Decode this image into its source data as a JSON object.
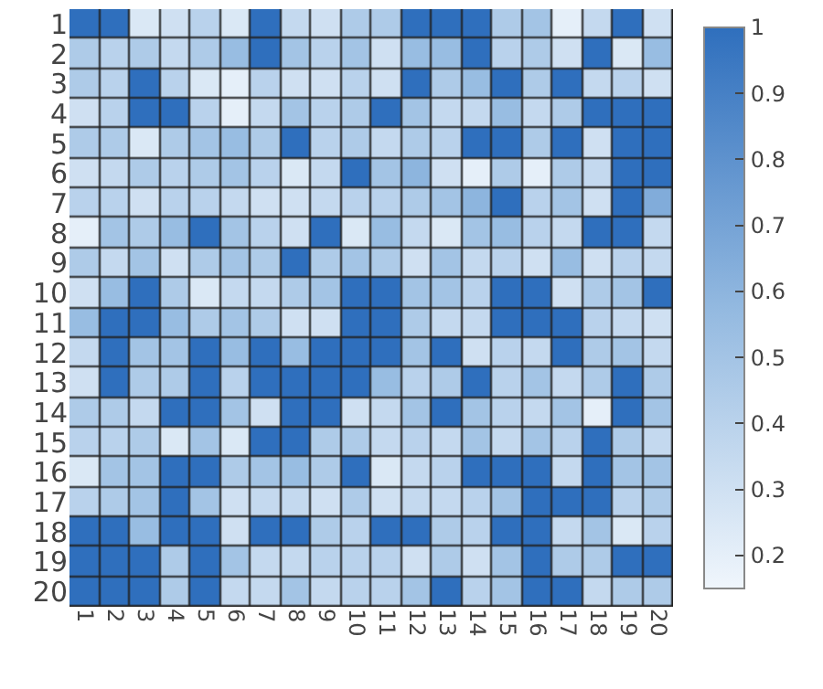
{
  "chart_data": {
    "type": "heatmap",
    "categories": [
      "1",
      "2",
      "3",
      "4",
      "5",
      "6",
      "7",
      "8",
      "9",
      "10",
      "11",
      "12",
      "13",
      "14",
      "15",
      "16",
      "17",
      "18",
      "19",
      "20"
    ],
    "y_categories": [
      "1",
      "2",
      "3",
      "4",
      "5",
      "6",
      "7",
      "8",
      "9",
      "10",
      "11",
      "12",
      "13",
      "14",
      "15",
      "16",
      "17",
      "18",
      "19",
      "20"
    ],
    "cells": [
      [
        1,
        1,
        0.25,
        0.3,
        0.4,
        0.25,
        1,
        0.35,
        0.3,
        0.45,
        0.45,
        1,
        1,
        1,
        0.45,
        0.5,
        0.2,
        0.35,
        1,
        0.3
      ],
      [
        0.45,
        0.4,
        0.45,
        0.35,
        0.45,
        0.55,
        1,
        0.5,
        0.4,
        0.5,
        0.3,
        0.55,
        0.55,
        1,
        0.4,
        0.45,
        0.3,
        1,
        0.25,
        0.55
      ],
      [
        0.45,
        0.4,
        1,
        0.4,
        0.25,
        0.2,
        0.4,
        0.3,
        0.3,
        0.4,
        0.3,
        1,
        0.45,
        0.55,
        1,
        0.45,
        1,
        0.35,
        0.4,
        0.3
      ],
      [
        0.3,
        0.4,
        1,
        1,
        0.4,
        0.2,
        0.35,
        0.5,
        0.4,
        0.45,
        1,
        0.5,
        0.35,
        0.35,
        0.55,
        0.35,
        0.45,
        1,
        1,
        1
      ],
      [
        0.45,
        0.45,
        0.25,
        0.45,
        0.5,
        0.55,
        0.45,
        1,
        0.4,
        0.45,
        0.35,
        0.45,
        0.4,
        1,
        1,
        0.45,
        1,
        0.3,
        1,
        1
      ],
      [
        0.3,
        0.35,
        0.45,
        0.4,
        0.45,
        0.5,
        0.4,
        0.25,
        0.35,
        1,
        0.5,
        0.6,
        0.3,
        0.2,
        0.45,
        0.2,
        0.45,
        0.35,
        1,
        1
      ],
      [
        0.4,
        0.4,
        0.3,
        0.4,
        0.4,
        0.35,
        0.3,
        0.3,
        0.35,
        0.4,
        0.4,
        0.45,
        0.5,
        0.6,
        1,
        0.4,
        0.5,
        0.3,
        1,
        0.65
      ],
      [
        0.2,
        0.5,
        0.45,
        0.55,
        1,
        0.5,
        0.4,
        0.3,
        1,
        0.25,
        0.55,
        0.35,
        0.25,
        0.5,
        0.55,
        0.4,
        0.35,
        1,
        1,
        0.35
      ],
      [
        0.45,
        0.35,
        0.5,
        0.3,
        0.45,
        0.5,
        0.45,
        1,
        0.45,
        0.5,
        0.45,
        0.3,
        0.5,
        0.35,
        0.4,
        0.3,
        0.55,
        0.3,
        0.4,
        0.35
      ],
      [
        0.3,
        0.55,
        1,
        0.45,
        0.25,
        0.35,
        0.35,
        0.45,
        0.5,
        1,
        1,
        0.5,
        0.5,
        0.4,
        1,
        1,
        0.3,
        0.45,
        0.5,
        1
      ],
      [
        0.55,
        1,
        1,
        0.55,
        0.45,
        0.5,
        0.45,
        0.3,
        0.3,
        1,
        1,
        0.45,
        0.35,
        0.35,
        1,
        1,
        1,
        0.4,
        0.35,
        0.3
      ],
      [
        0.35,
        1,
        0.5,
        0.5,
        1,
        0.55,
        1,
        0.55,
        1,
        1,
        1,
        0.5,
        1,
        0.3,
        0.4,
        0.35,
        1,
        0.45,
        0.5,
        0.35
      ],
      [
        0.3,
        1,
        0.45,
        0.45,
        1,
        0.4,
        1,
        1,
        1,
        1,
        0.55,
        0.4,
        0.45,
        1,
        0.4,
        0.5,
        0.35,
        0.45,
        1,
        0.45
      ],
      [
        0.45,
        0.45,
        0.35,
        1,
        1,
        0.5,
        0.3,
        1,
        1,
        0.3,
        0.35,
        0.5,
        1,
        0.5,
        0.4,
        0.35,
        0.5,
        0.2,
        1,
        0.5
      ],
      [
        0.4,
        0.4,
        0.45,
        0.25,
        0.5,
        0.25,
        1,
        1,
        0.45,
        0.45,
        0.35,
        0.4,
        0.35,
        0.5,
        0.35,
        0.5,
        0.4,
        1,
        0.45,
        0.35
      ],
      [
        0.25,
        0.5,
        0.5,
        1,
        1,
        0.45,
        0.5,
        0.55,
        0.45,
        1,
        0.25,
        0.35,
        0.4,
        1,
        1,
        1,
        0.35,
        1,
        0.5,
        0.5
      ],
      [
        0.4,
        0.45,
        0.5,
        1,
        0.5,
        0.3,
        0.35,
        0.35,
        0.3,
        0.45,
        0.3,
        0.35,
        0.35,
        0.4,
        0.5,
        1,
        1,
        1,
        0.4,
        0.45
      ],
      [
        1,
        1,
        0.55,
        1,
        1,
        0.3,
        1,
        1,
        0.45,
        0.4,
        1,
        1,
        0.45,
        0.4,
        1,
        1,
        0.35,
        0.5,
        0.25,
        0.4
      ],
      [
        1,
        1,
        1,
        0.45,
        1,
        0.5,
        0.35,
        0.35,
        0.4,
        0.4,
        0.4,
        0.3,
        0.45,
        0.3,
        0.5,
        1,
        0.45,
        0.45,
        1,
        1
      ],
      [
        1,
        1,
        1,
        0.45,
        1,
        0.35,
        0.35,
        0.5,
        0.35,
        0.4,
        0.4,
        0.5,
        1,
        0.4,
        0.5,
        1,
        1,
        0.35,
        0.45,
        0.45
      ]
    ],
    "clim": [
      0.15,
      1
    ],
    "cticks": [
      0.2,
      0.3,
      0.4,
      0.5,
      0.6,
      0.7,
      0.8,
      0.9,
      1
    ]
  }
}
